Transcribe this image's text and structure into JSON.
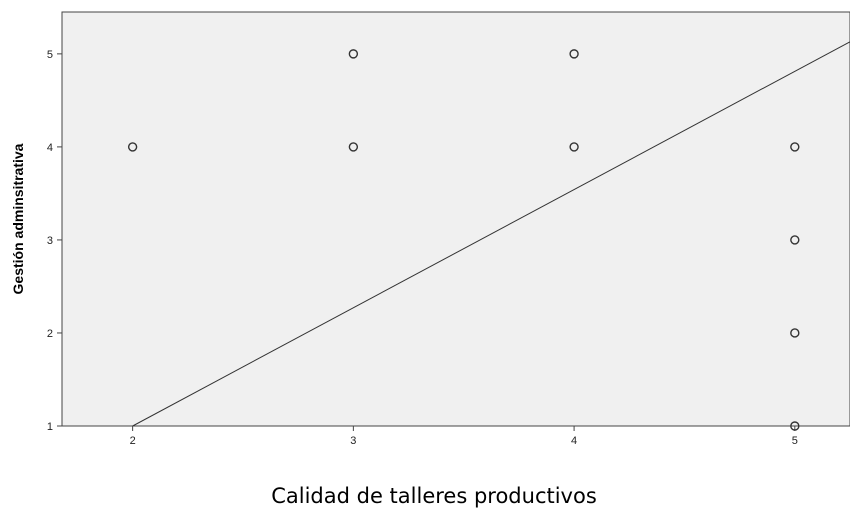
{
  "chart_data": {
    "type": "scatter",
    "title": "",
    "xlabel": "Calidad de talleres productivos",
    "ylabel": "Gestión adminsitrativa",
    "xlim": [
      1.68,
      5.25
    ],
    "ylim": [
      1,
      5.45
    ],
    "xticks": [
      2,
      3,
      4,
      5
    ],
    "yticks": [
      1,
      2,
      3,
      4,
      5
    ],
    "grid": false,
    "legend": "none",
    "plot_background": "#f0f0f0",
    "marker_color": "#333333",
    "points": [
      {
        "x": 2,
        "y": 4
      },
      {
        "x": 3,
        "y": 5
      },
      {
        "x": 3,
        "y": 4
      },
      {
        "x": 4,
        "y": 5
      },
      {
        "x": 4,
        "y": 4
      },
      {
        "x": 5,
        "y": 4
      },
      {
        "x": 5,
        "y": 3
      },
      {
        "x": 5,
        "y": 2
      },
      {
        "x": 5,
        "y": 1
      }
    ],
    "fit_line": {
      "x": [
        2,
        5.25
      ],
      "y": [
        1,
        5.13
      ]
    }
  }
}
